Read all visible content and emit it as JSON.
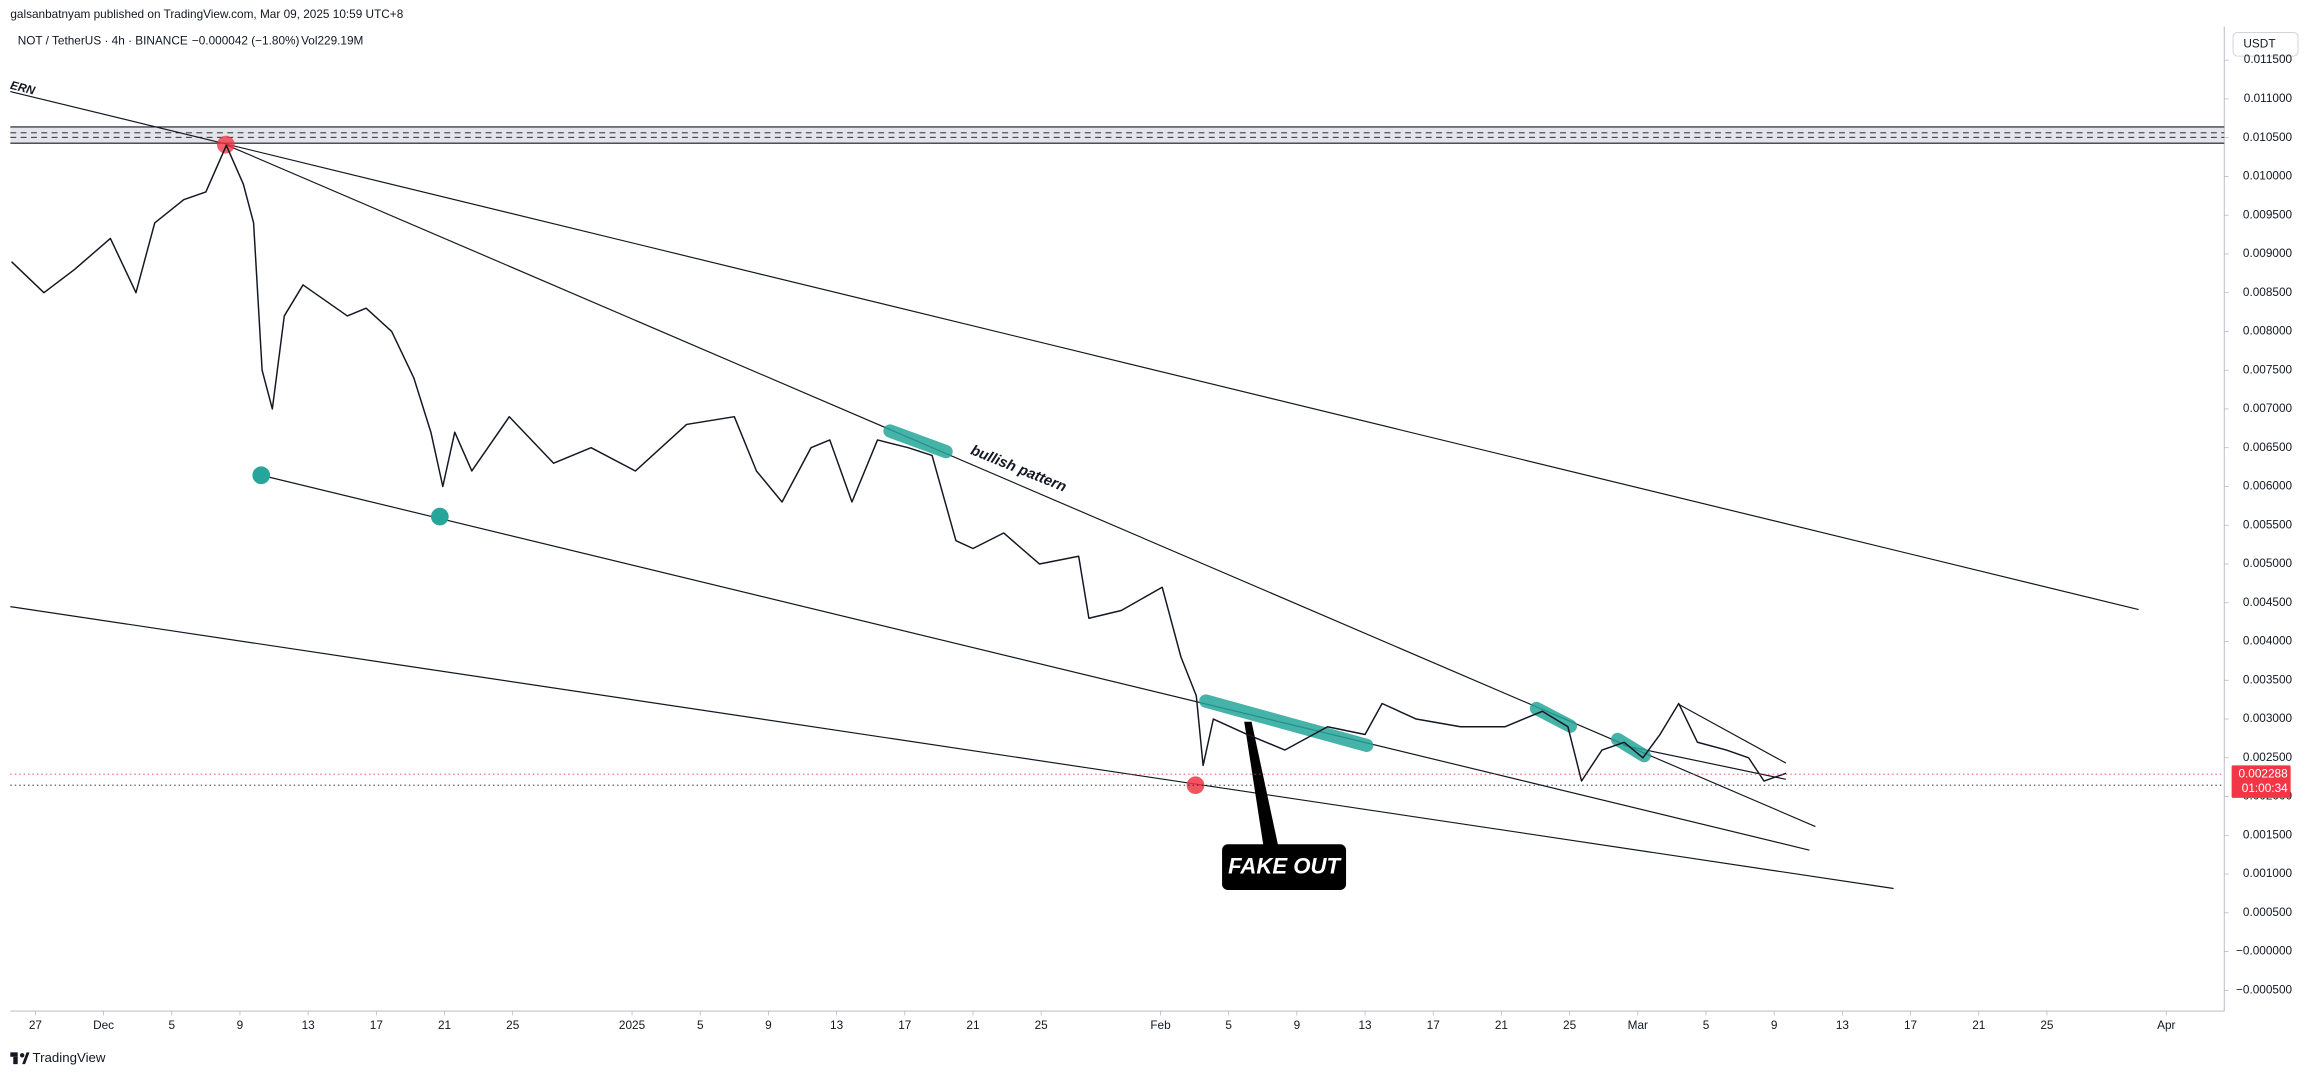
{
  "chart_data": {
    "type": "line",
    "publisher": "galsanbatnyam published on TradingView.com, Mar 09, 2025 10:59 UTC+8",
    "symbol": "NOT / TetherUS · 4h · BINANCE",
    "change": "−0.000042 (−1.80%)",
    "volume": "Vol229.19M",
    "currency": "USDT",
    "last_price": 0.002288,
    "countdown": "01:00:34",
    "brand": "TradingView",
    "annotations": [
      "ERN",
      "bullish pattern",
      "FAKE OUT"
    ],
    "grid": false,
    "x": [
      -1.4,
      0.5,
      2.3,
      4.4,
      5.9,
      7.0,
      8.7,
      10.0,
      11.2,
      12.2,
      12.8,
      13.3,
      13.9,
      14.6,
      15.7,
      17.0,
      18.3,
      19.4,
      20.9,
      22.2,
      23.2,
      23.9,
      24.6,
      25.6,
      27.8,
      30.4,
      32.6,
      35.2,
      38.2,
      41.0,
      42.3,
      43.8,
      45.5,
      46.6,
      47.9,
      49.4,
      51.2,
      52.6,
      54.0,
      55.0,
      56.8,
      58.9,
      61.2,
      61.8,
      63.7,
      66.1,
      67.2,
      68.1,
      68.5,
      69.1,
      71.1,
      73.3,
      75.8,
      78.0,
      79.0,
      81.0,
      83.6,
      86.2,
      88.4,
      89.9,
      90.7,
      91.9,
      93.2,
      94.3,
      95.3,
      96.4,
      97.5,
      99.2,
      100.5,
      101.4,
      102.7
    ],
    "series": [
      {
        "name": "NOT / TetherUS",
        "color": "#131722",
        "values": [
          0.0089,
          0.0085,
          0.0088,
          0.0092,
          0.0085,
          0.0094,
          0.0097,
          0.0098,
          0.0104,
          0.0099,
          0.0094,
          0.0075,
          0.007,
          0.0082,
          0.0086,
          0.0084,
          0.0082,
          0.0083,
          0.008,
          0.0074,
          0.0067,
          0.006,
          0.0067,
          0.0062,
          0.0069,
          0.0063,
          0.0065,
          0.0062,
          0.0068,
          0.0069,
          0.0062,
          0.0058,
          0.0065,
          0.0066,
          0.0058,
          0.0066,
          0.0065,
          0.0064,
          0.0053,
          0.0052,
          0.0054,
          0.005,
          0.0051,
          0.0043,
          0.0044,
          0.0047,
          0.0038,
          0.0033,
          0.0024,
          0.003,
          0.0028,
          0.0026,
          0.0029,
          0.0028,
          0.0032,
          0.003,
          0.0029,
          0.0029,
          0.0031,
          0.0029,
          0.0022,
          0.0026,
          0.0027,
          0.0025,
          0.0028,
          0.0032,
          0.0027,
          0.0026,
          0.0025,
          0.0022,
          0.0023
        ]
      }
    ],
    "xlim": [
      -1.47,
      128.4
    ],
    "ylim": [
      -0.000767,
      0.011933
    ],
    "xticks": [
      {
        "value": 0,
        "label": "27"
      },
      {
        "value": 4,
        "label": "Dec"
      },
      {
        "value": 8,
        "label": "5"
      },
      {
        "value": 12,
        "label": "9"
      },
      {
        "value": 16,
        "label": "13"
      },
      {
        "value": 20,
        "label": "17"
      },
      {
        "value": 24,
        "label": "21"
      },
      {
        "value": 28,
        "label": "25"
      },
      {
        "value": 35,
        "label": "2025"
      },
      {
        "value": 39,
        "label": "5"
      },
      {
        "value": 43,
        "label": "9"
      },
      {
        "value": 47,
        "label": "13"
      },
      {
        "value": 51,
        "label": "17"
      },
      {
        "value": 55,
        "label": "21"
      },
      {
        "value": 59,
        "label": "25"
      },
      {
        "value": 66,
        "label": "Feb"
      },
      {
        "value": 70,
        "label": "5"
      },
      {
        "value": 74,
        "label": "9"
      },
      {
        "value": 78,
        "label": "13"
      },
      {
        "value": 82,
        "label": "17"
      },
      {
        "value": 86,
        "label": "21"
      },
      {
        "value": 90,
        "label": "25"
      },
      {
        "value": 94,
        "label": "Mar"
      },
      {
        "value": 98,
        "label": "5"
      },
      {
        "value": 102,
        "label": "9"
      },
      {
        "value": 106,
        "label": "13"
      },
      {
        "value": 110,
        "label": "17"
      },
      {
        "value": 114,
        "label": "21"
      },
      {
        "value": 118,
        "label": "25"
      },
      {
        "value": 125,
        "label": "Apr"
      }
    ],
    "yticks": [
      {
        "value": -0.0005,
        "label": "−0.000500"
      },
      {
        "value": 0,
        "label": "−0.000000"
      },
      {
        "value": 0.0005,
        "label": "0.000500"
      },
      {
        "value": 0.001,
        "label": "0.001000"
      },
      {
        "value": 0.0015,
        "label": "0.001500"
      },
      {
        "value": 0.002,
        "label": "0.002000"
      },
      {
        "value": 0.0025,
        "label": "0.002500"
      },
      {
        "value": 0.003,
        "label": "0.003000"
      },
      {
        "value": 0.0035,
        "label": "0.003500"
      },
      {
        "value": 0.004,
        "label": "0.004000"
      },
      {
        "value": 0.0045,
        "label": "0.004500"
      },
      {
        "value": 0.005,
        "label": "0.005000"
      },
      {
        "value": 0.0055,
        "label": "0.005500"
      },
      {
        "value": 0.006,
        "label": "0.006000"
      },
      {
        "value": 0.0065,
        "label": "0.006500"
      },
      {
        "value": 0.007,
        "label": "0.007000"
      },
      {
        "value": 0.0075,
        "label": "0.007500"
      },
      {
        "value": 0.008,
        "label": "0.008000"
      },
      {
        "value": 0.0085,
        "label": "0.008500"
      },
      {
        "value": 0.009,
        "label": "0.009000"
      },
      {
        "value": 0.0095,
        "label": "0.009500"
      },
      {
        "value": 0.01,
        "label": "0.010000"
      },
      {
        "value": 0.0105,
        "label": "0.010500"
      },
      {
        "value": 0.011,
        "label": "0.011000"
      },
      {
        "value": 0.0115,
        "label": "0.011500"
      }
    ]
  }
}
